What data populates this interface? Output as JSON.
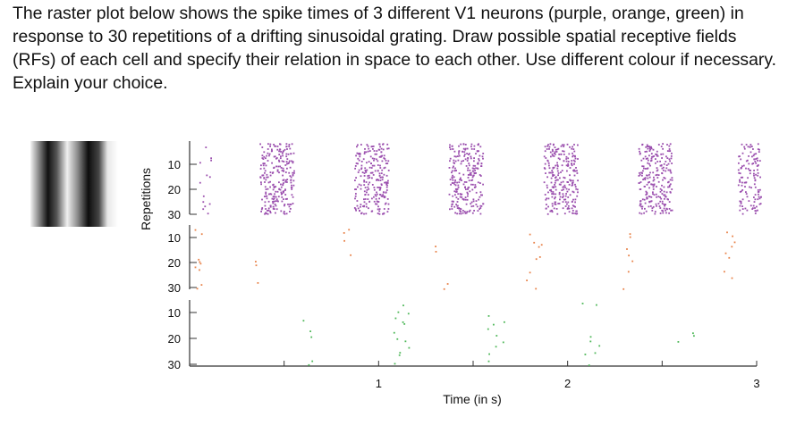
{
  "question": {
    "text": "The raster plot below shows the spike times of 3 different V1 neurons (purple, orange, green) in response to 30 repetitions of a drifting sinusoidal grating. Draw possible spatial receptive fields (RFs) of each cell and specify their relation in space to each other. Use different colour if necessary. Explain your choice."
  },
  "stimulus": {
    "description_icon": "sinusoidal-grating-icon"
  },
  "colors": {
    "purple": "#9b4fae",
    "orange": "#e8834a",
    "green": "#4fb85a",
    "axis": "#333333"
  },
  "chart_data": {
    "type": "scatter",
    "xlabel": "Time (in s)",
    "ylabel": "Repetitions",
    "xlim": [
      0,
      3
    ],
    "x_ticks": [
      0,
      0.5,
      1,
      1.5,
      2,
      2.5,
      3
    ],
    "x_tick_labels": [
      "",
      "",
      "1",
      "",
      "2",
      "",
      "3"
    ],
    "panels": [
      {
        "color": "purple",
        "y_ticks": [
          "10",
          "20",
          "30"
        ],
        "reps": 30,
        "bursts": [
          {
            "center": 0.08,
            "width": 0.06,
            "density": 0.35
          },
          {
            "center": 0.46,
            "width": 0.18,
            "density": 0.8
          },
          {
            "center": 0.96,
            "width": 0.18,
            "density": 0.8
          },
          {
            "center": 1.46,
            "width": 0.18,
            "density": 0.8
          },
          {
            "center": 1.96,
            "width": 0.18,
            "density": 0.8
          },
          {
            "center": 2.46,
            "width": 0.18,
            "density": 0.8
          },
          {
            "center": 2.96,
            "width": 0.12,
            "density": 0.7
          }
        ]
      },
      {
        "color": "orange",
        "y_ticks": [
          "10",
          "20",
          "30"
        ],
        "reps": 30,
        "bursts": [
          {
            "center": 0.05,
            "width": 0.05,
            "density": 0.2
          },
          {
            "center": 0.34,
            "width": 0.08,
            "density": 0.12
          },
          {
            "center": 0.84,
            "width": 0.08,
            "density": 0.12
          },
          {
            "center": 1.33,
            "width": 0.08,
            "density": 0.12
          },
          {
            "center": 1.82,
            "width": 0.08,
            "density": 0.12
          },
          {
            "center": 2.33,
            "width": 0.08,
            "density": 0.12
          },
          {
            "center": 2.84,
            "width": 0.08,
            "density": 0.12
          }
        ]
      },
      {
        "color": "green",
        "y_ticks": [
          "10",
          "20",
          "30"
        ],
        "reps": 30,
        "bursts": [
          {
            "center": 0.14,
            "width": 0.09,
            "density": 0.15
          },
          {
            "center": 0.63,
            "width": 0.09,
            "density": 0.15
          },
          {
            "center": 1.12,
            "width": 0.09,
            "density": 0.12
          },
          {
            "center": 1.62,
            "width": 0.09,
            "density": 0.12
          },
          {
            "center": 2.12,
            "width": 0.09,
            "density": 0.12
          },
          {
            "center": 2.62,
            "width": 0.09,
            "density": 0.12
          }
        ]
      }
    ]
  }
}
